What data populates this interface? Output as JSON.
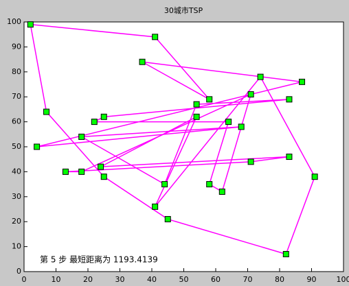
{
  "chart_data": {
    "type": "line",
    "title": "30城市TSP",
    "annotation": "第 5 步  最短距离为 1193.4139",
    "x": [
      2,
      41,
      58,
      37,
      87,
      4,
      68,
      18,
      44,
      54,
      83,
      25,
      22,
      64,
      58,
      62,
      71,
      18,
      13,
      71,
      83,
      24,
      54,
      41,
      74,
      91,
      82,
      45,
      25,
      7
    ],
    "series": [
      {
        "color": "#ff00ff",
        "marker_color": "#00ff00",
        "values": [
          99,
          94,
          69,
          84,
          76,
          50,
          58,
          54,
          35,
          67,
          69,
          62,
          60,
          60,
          35,
          32,
          71,
          40,
          40,
          44,
          46,
          42,
          62,
          26,
          78,
          38,
          7,
          21,
          38,
          64
        ]
      }
    ],
    "closed": true,
    "xlim": [
      0,
      100
    ],
    "xticks": [
      0,
      10,
      20,
      30,
      40,
      50,
      60,
      70,
      80,
      90,
      100
    ],
    "ylim": [
      0,
      100
    ],
    "yticks": [
      0,
      10,
      20,
      30,
      40,
      50,
      60,
      70,
      80,
      90,
      100
    ]
  }
}
